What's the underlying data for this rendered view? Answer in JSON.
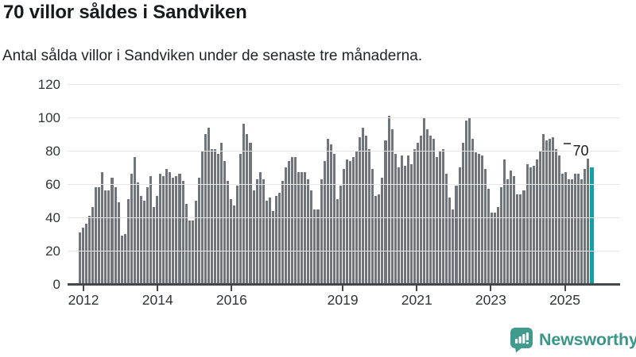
{
  "chart_data": {
    "type": "bar",
    "title": "70 villor såldes i Sandviken",
    "subtitle": "Antal sålda villor i Sandviken under de senaste tre månaderna.",
    "xlabel": "",
    "ylabel": "",
    "ylim": [
      0,
      120
    ],
    "grid": true,
    "legend": false,
    "y_ticks": [
      0,
      20,
      40,
      60,
      80,
      100,
      120
    ],
    "x_ticks": [
      {
        "label": "2012",
        "bar_index": 1
      },
      {
        "label": "2014",
        "bar_index": 24
      },
      {
        "label": "2016",
        "bar_index": 47
      },
      {
        "label": "2019",
        "bar_index": 81.5
      },
      {
        "label": "2021",
        "bar_index": 104.5
      },
      {
        "label": "2023",
        "bar_index": 127.5
      },
      {
        "label": "2025",
        "bar_index": 150.5
      }
    ],
    "x_range_years": [
      "2012",
      "2025"
    ],
    "values": [
      31,
      34,
      36,
      41,
      46,
      58,
      58,
      67,
      56,
      56,
      64,
      58,
      49,
      29,
      30,
      51,
      66,
      76,
      61,
      53,
      50,
      58,
      65,
      46,
      53,
      66,
      65,
      69,
      67,
      64,
      65,
      66,
      62,
      48,
      38,
      38,
      50,
      64,
      80,
      90,
      94,
      81,
      81,
      78,
      85,
      74,
      62,
      51,
      47,
      59,
      78,
      96,
      90,
      85,
      56,
      63,
      67,
      63,
      50,
      52,
      44,
      53,
      55,
      62,
      70,
      74,
      76,
      76,
      67,
      67,
      67,
      63,
      56,
      45,
      45,
      63,
      74,
      87,
      84,
      78,
      51,
      59,
      69,
      75,
      74,
      76,
      80,
      88,
      94,
      89,
      81,
      69,
      53,
      54,
      64,
      86,
      101,
      93,
      78,
      70,
      77,
      71,
      77,
      72,
      81,
      85,
      89,
      100,
      93,
      89,
      87,
      76,
      80,
      81,
      66,
      52,
      45,
      59,
      70,
      85,
      98,
      100,
      87,
      79,
      78,
      77,
      69,
      57,
      43,
      43,
      46,
      58,
      75,
      63,
      68,
      65,
      54,
      54,
      56,
      72,
      70,
      71,
      75,
      80,
      90,
      86,
      87,
      88,
      81,
      77,
      66,
      67,
      63,
      63,
      66,
      66,
      63,
      69,
      77,
      70
    ],
    "highlight_last": {
      "value": 70,
      "label": "70"
    }
  },
  "colors": {
    "bar": "#70757d",
    "highlight": "#10a2a2",
    "grid": "#e7e7e7",
    "axis": "#44484c",
    "tick_text": "#303538",
    "brand_text": "#3b9589",
    "logo_bg": "#419a8e"
  },
  "footer": {
    "brand": "Newsworthy"
  }
}
